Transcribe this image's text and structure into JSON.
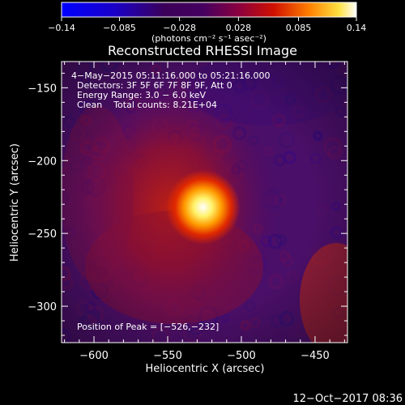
{
  "chart_data": {
    "type": "heatmap",
    "title": "Reconstructed RHESSI Image",
    "xlabel": "Heliocentric X (arcsec)",
    "ylabel": "Heliocentric Y (arcsec)",
    "xlim": [
      -622,
      -428
    ],
    "ylim": [
      -325,
      -132
    ],
    "xticks": [
      -600,
      -550,
      -500,
      -450
    ],
    "yticks": [
      -150,
      -200,
      -250,
      -300
    ],
    "xtick_labels": [
      "−600",
      "−550",
      "−500",
      "−450"
    ],
    "ytick_labels": [
      "−150",
      "−200",
      "−250",
      "−300"
    ],
    "colorbar": {
      "range": [
        -0.14,
        0.14
      ],
      "ticks": [
        -0.14,
        -0.085,
        -0.028,
        0.028,
        0.085,
        0.14
      ],
      "tick_labels": [
        "−0.14",
        "−0.085",
        "−0.028",
        "0.028",
        "0.085",
        "0.14"
      ],
      "unit_label": "(photons cm⁻² s⁻¹ asec⁻²)"
    },
    "peak": {
      "x": -526,
      "y": -232,
      "value": 0.14
    },
    "annotations": {
      "time": "4−May−2015 05:11:16.000 to 05:21:16.000",
      "detectors": "Detectors: 3F 5F 6F 7F 8F 9F, Att 0",
      "energy": "Energy Range: 3.0 − 6.0 keV",
      "clean": "Clean    Total counts: 8.21E+04",
      "peak_text": "Position of Peak = [−526,−232]"
    },
    "footer": "12−Oct−2017 08:36"
  }
}
